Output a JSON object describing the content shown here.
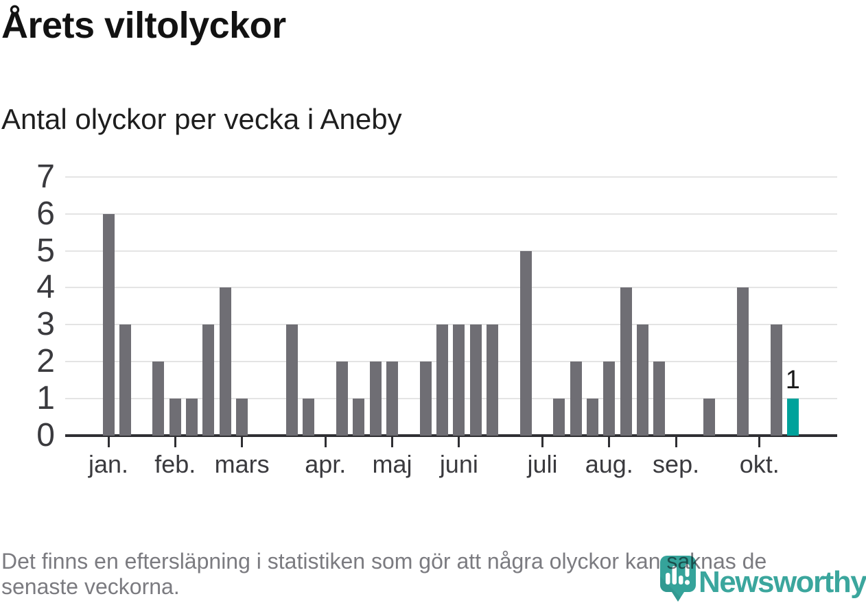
{
  "header": {
    "title": "Årets viltolyckor",
    "subtitle": "Antal olyckor per vecka i Aneby"
  },
  "chart_data": {
    "type": "bar",
    "title": "Årets viltolyckor",
    "subtitle": "Antal olyckor per vecka i Aneby",
    "x_unit": "vecka",
    "categories_note": "weeks 1-42 of the year",
    "values": [
      6,
      3,
      0,
      2,
      1,
      1,
      3,
      4,
      1,
      0,
      0,
      3,
      1,
      0,
      2,
      1,
      2,
      2,
      0,
      2,
      3,
      3,
      3,
      3,
      0,
      5,
      0,
      1,
      2,
      1,
      2,
      4,
      3,
      2,
      0,
      0,
      1,
      0,
      4,
      0,
      3,
      1
    ],
    "ylim": [
      0,
      7
    ],
    "y_ticks": [
      0,
      1,
      2,
      3,
      4,
      5,
      6,
      7
    ],
    "month_ticks": [
      {
        "label": "jan.",
        "week": 1
      },
      {
        "label": "feb.",
        "week": 5
      },
      {
        "label": "mars",
        "week": 9
      },
      {
        "label": "apr.",
        "week": 14
      },
      {
        "label": "maj",
        "week": 18
      },
      {
        "label": "juni",
        "week": 22
      },
      {
        "label": "juli",
        "week": 27
      },
      {
        "label": "aug.",
        "week": 31
      },
      {
        "label": "sep.",
        "week": 35
      },
      {
        "label": "okt.",
        "week": 40
      }
    ],
    "highlight": {
      "week": 42,
      "value": 1,
      "label": "1"
    },
    "colors": {
      "bar": "#6f6e74",
      "highlight": "#00a29b",
      "grid": "#e4e4e4",
      "axis": "#2f2f33"
    },
    "grid": true,
    "legend": false
  },
  "footer": {
    "note_line1": "Det finns en eftersläpning i statistiken som gör att några olyckor kan saknas de",
    "note_line2": "senaste veckorna."
  },
  "logo": {
    "text": "Newsworthy",
    "pin_color": "#35a39a",
    "pin_shade_color": "#2c8f88",
    "text_color": "#3ba69d"
  }
}
